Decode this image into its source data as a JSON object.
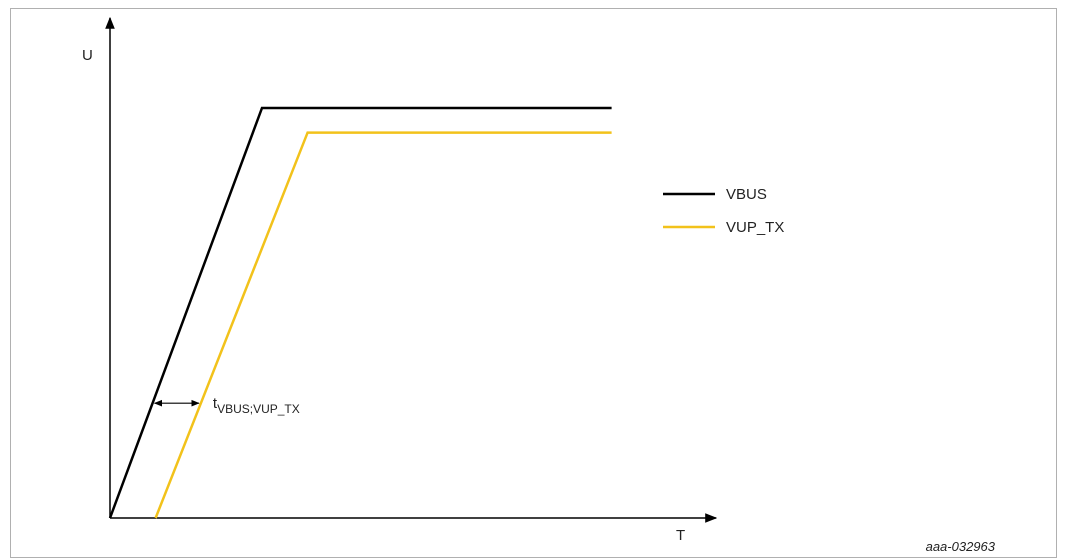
{
  "chart_data": {
    "type": "line",
    "y_axis_label": "U",
    "x_axis_label": "T",
    "series": [
      {
        "name": "VBUS",
        "color": "#000000",
        "points": [
          [
            0,
            0
          ],
          [
            1,
            1
          ],
          [
            3.3,
            1
          ]
        ]
      },
      {
        "name": "VUP_TX",
        "color": "#F2C21B",
        "points": [
          [
            0.3,
            0
          ],
          [
            1.3,
            0.94
          ],
          [
            3.3,
            0.94
          ]
        ]
      }
    ],
    "xlim": [
      0,
      4
    ],
    "ylim": [
      0,
      1.2
    ],
    "grid": false,
    "legend_position": "right",
    "annotation": {
      "base": "t",
      "subscript": "VBUS;VUP_TX",
      "y_level": 0.28
    }
  },
  "figure_reference": "aaa-032963"
}
